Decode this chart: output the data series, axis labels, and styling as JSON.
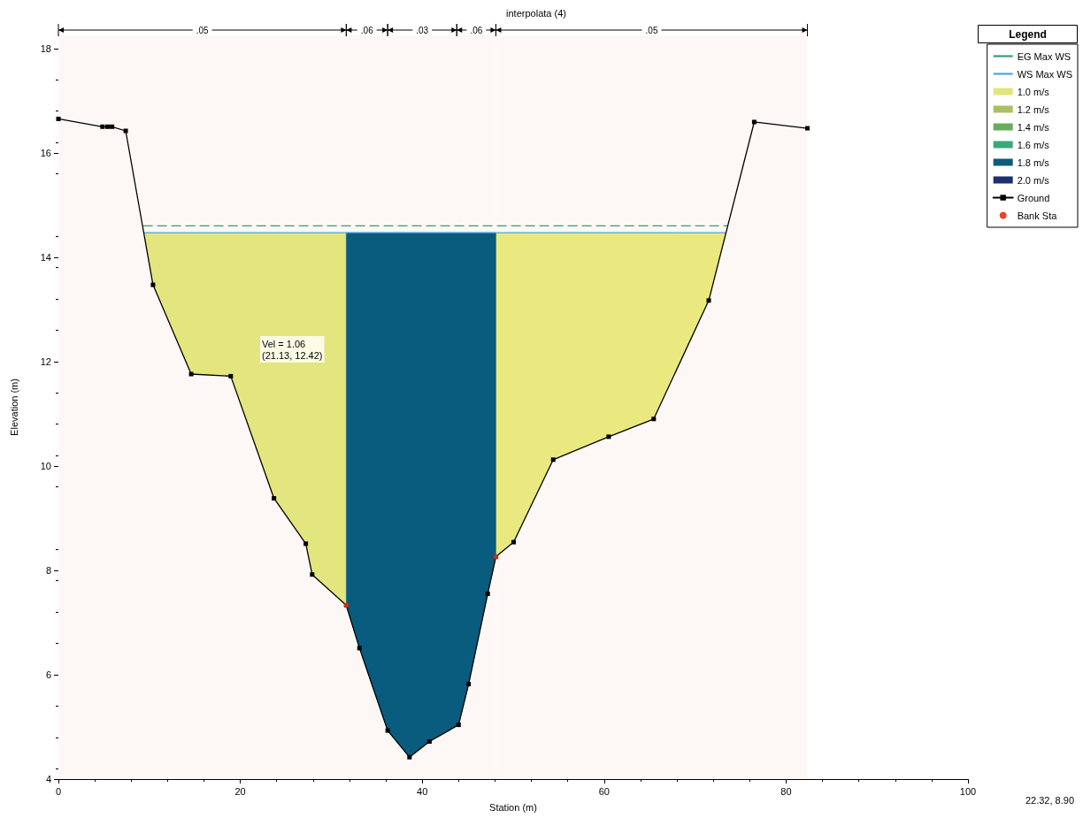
{
  "chart_data": {
    "type": "line",
    "title": "interpolata (4)",
    "xlabel": "Station (m)",
    "ylabel": "Elevation (m)",
    "legend_title": "Legend",
    "legend": "top right",
    "grid": false,
    "xlim": [
      0,
      100
    ],
    "xticks": [
      0,
      20,
      40,
      60,
      80,
      100
    ],
    "ylim": [
      4,
      18.25
    ],
    "yticks": [
      4,
      6,
      8,
      10,
      12,
      14,
      16,
      18
    ],
    "bands": [
      {
        "axis": "x",
        "from": 0,
        "to": 31.65,
        "label": ".05",
        "color": "#fdf8f6"
      },
      {
        "axis": "x",
        "from": 31.65,
        "to": 36.2,
        "label": ".06",
        "color": "#fdf8f6"
      },
      {
        "axis": "x",
        "from": 36.2,
        "to": 43.8,
        "label": ".03",
        "color": "#fdf8f6"
      },
      {
        "axis": "x",
        "from": 43.8,
        "to": 48.1,
        "label": ".06",
        "color": "#fdf8f6"
      },
      {
        "axis": "x",
        "from": 48.1,
        "to": 82.35,
        "label": ".05",
        "color": "#fdf8f6"
      }
    ],
    "annotations": [
      "Vel = 1.06\n(21.13, 12.42)",
      "22.32, 8.90"
    ],
    "series": [
      {
        "name": "EG Max WS",
        "color": "#3a9a7a",
        "line_style": "dashed",
        "marker": "none",
        "x": [
          9.35,
          73.55
        ],
        "values": [
          14.6,
          14.6
        ]
      },
      {
        "name": "WS Max WS",
        "color": "#4aa8e0",
        "line_style": "solid",
        "marker": "none",
        "x": [
          9.38,
          73.4
        ],
        "values": [
          14.47,
          14.47
        ]
      },
      {
        "name": "1.0 m/s",
        "type": "area",
        "color": "#e3e57f",
        "x": [
          9.38,
          31.65,
          31.65,
          27.9,
          27.2,
          23.7,
          18.95,
          14.6,
          10.4
        ],
        "values": [
          14.47,
          14.47,
          7.33,
          7.92,
          8.51,
          9.38,
          11.72,
          11.76,
          13.47
        ]
      },
      {
        "type": "area",
        "color": "#e9e97f",
        "x": [
          48.1,
          73.4,
          71.5,
          65.45,
          60.5,
          54.4,
          50.05,
          48.1
        ],
        "values": [
          14.47,
          14.47,
          13.17,
          10.9,
          10.56,
          10.12,
          8.54,
          8.26
        ]
      },
      {
        "name": "1.2 m/s",
        "type": "area",
        "color": "#a9c063"
      },
      {
        "name": "1.4 m/s",
        "type": "area",
        "color": "#6aaa5e"
      },
      {
        "name": "1.6 m/s",
        "type": "area",
        "color": "#3aa878"
      },
      {
        "name": "1.8 m/s",
        "type": "area",
        "color": "#0a5c7e",
        "x": [
          31.65,
          48.1,
          48.1,
          47.2,
          45.1,
          44.0,
          40.8,
          38.6,
          36.2,
          33.1,
          31.65
        ],
        "values": [
          14.47,
          14.47,
          8.26,
          7.55,
          5.82,
          5.04,
          4.72,
          4.42,
          4.93,
          6.51,
          7.33
        ]
      },
      {
        "name": "2.0 m/s",
        "type": "area",
        "color": "#1c2f6e"
      },
      {
        "name": "Ground",
        "color": "#000000",
        "line_style": "solid",
        "marker": "square",
        "x": [
          0,
          4.85,
          5.4,
          5.9,
          7.4,
          10.4,
          14.6,
          18.95,
          23.7,
          27.2,
          27.9,
          31.65,
          33.1,
          36.2,
          38.6,
          40.8,
          44.0,
          45.1,
          47.2,
          48.1,
          50.05,
          54.4,
          60.5,
          65.45,
          71.5,
          76.5,
          82.35
        ],
        "values": [
          16.65,
          16.5,
          16.5,
          16.5,
          16.42,
          13.47,
          11.76,
          11.72,
          9.38,
          8.51,
          7.92,
          7.33,
          6.51,
          4.93,
          4.42,
          4.72,
          5.04,
          5.82,
          7.55,
          8.26,
          8.54,
          10.12,
          10.56,
          10.9,
          13.17,
          16.59,
          16.47
        ]
      },
      {
        "name": "Bank Sta",
        "type": "scatter",
        "color": "#e8412c",
        "marker": "circle",
        "x": [
          31.65,
          48.1
        ],
        "values": [
          7.33,
          8.26
        ]
      }
    ]
  }
}
